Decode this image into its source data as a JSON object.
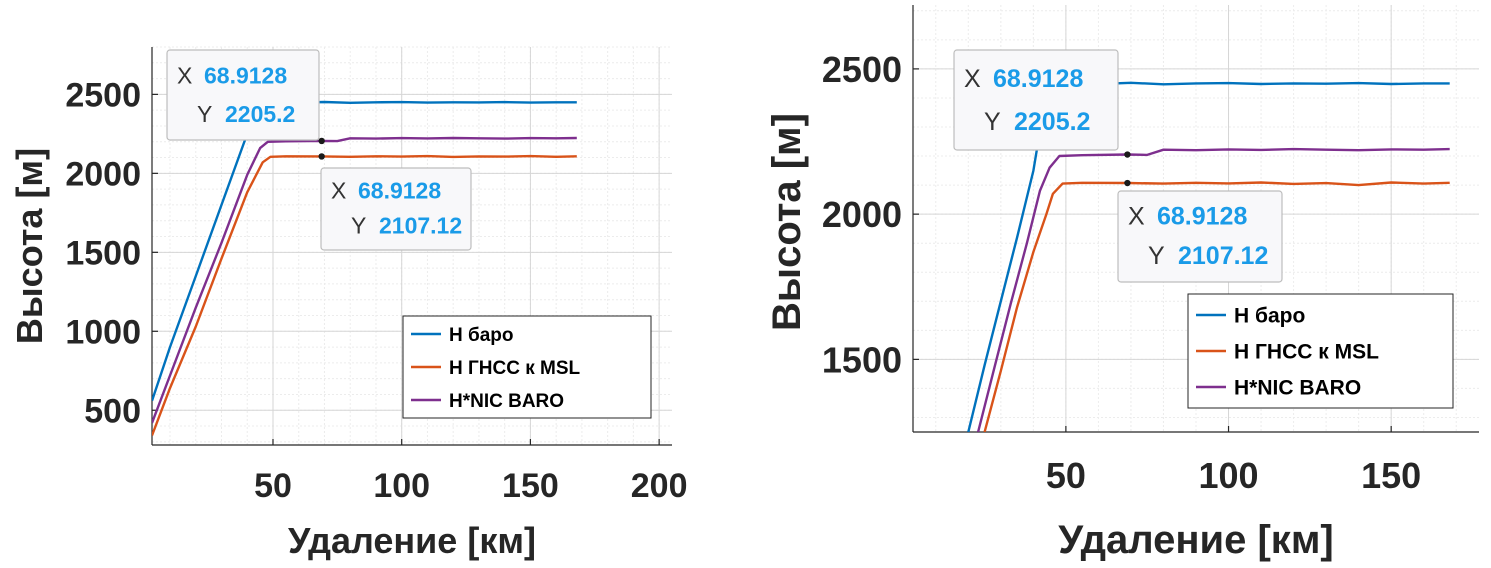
{
  "colors": {
    "baro": "#0072BD",
    "gnss": "#D95319",
    "nic": "#7E2F8E",
    "tip_label": "#333333",
    "tip_value": "#1A9BE8"
  },
  "chart_data": [
    {
      "type": "line",
      "xlabel": "Удаление [км]",
      "ylabel": "Высота [м]",
      "xlim": [
        3,
        205
      ],
      "ylim": [
        280,
        2800
      ],
      "xticks": [
        50,
        100,
        150,
        200
      ],
      "yticks": [
        500,
        1000,
        1500,
        2000,
        2500
      ],
      "grid": "major and minor",
      "legend_position": "bottom-right",
      "series": [
        {
          "name": "H баро",
          "color_key": "baro",
          "x": [
            3,
            10,
            20,
            30,
            40,
            44,
            47,
            50,
            60,
            70,
            80,
            90,
            100,
            110,
            120,
            130,
            140,
            150,
            160,
            168
          ],
          "y": [
            560,
            900,
            1350,
            1800,
            2250,
            2430,
            2448,
            2450,
            2448,
            2452,
            2447,
            2450,
            2451,
            2448,
            2450,
            2449,
            2451,
            2448,
            2450,
            2450
          ]
        },
        {
          "name": "H ГНСС к MSL",
          "color_key": "gnss",
          "x": [
            3,
            10,
            20,
            30,
            40,
            46,
            49,
            55,
            69,
            80,
            90,
            100,
            110,
            120,
            130,
            140,
            150,
            160,
            168
          ],
          "y": [
            340,
            640,
            1030,
            1460,
            1880,
            2070,
            2105,
            2108,
            2107.12,
            2105,
            2108,
            2106,
            2109,
            2104,
            2107,
            2106,
            2109,
            2105,
            2108
          ]
        },
        {
          "name": "H*NIC BARO",
          "color_key": "nic",
          "x": [
            3,
            10,
            20,
            30,
            40,
            45,
            48,
            55,
            69,
            75,
            80,
            90,
            100,
            110,
            120,
            130,
            140,
            150,
            160,
            168
          ],
          "y": [
            420,
            720,
            1150,
            1560,
            1990,
            2160,
            2200,
            2203,
            2205.2,
            2204,
            2222,
            2220,
            2223,
            2221,
            2224,
            2222,
            2220,
            2223,
            2222,
            2224
          ]
        }
      ],
      "datatips": [
        {
          "x_label": "X",
          "x_value": "68.9128",
          "y_label": "Y",
          "y_value": "2205.2",
          "x": 68.9128,
          "y": 2205.2
        },
        {
          "x_label": "X",
          "x_value": "68.9128",
          "y_label": "Y",
          "y_value": "2107.12",
          "x": 68.9128,
          "y": 2107.12
        }
      ]
    },
    {
      "type": "line",
      "xlabel": "Удаление [км]",
      "ylabel": "Высота [м]",
      "xlim": [
        3,
        177
      ],
      "ylim": [
        1250,
        2720
      ],
      "xticks": [
        50,
        100,
        150
      ],
      "yticks": [
        1500,
        2000,
        2500
      ],
      "grid": "major and minor",
      "legend_position": "bottom-right",
      "series": [
        {
          "name": "H баро",
          "color_key": "baro",
          "x": [
            20,
            25,
            30,
            35,
            40,
            44,
            47,
            50,
            60,
            70,
            80,
            90,
            100,
            110,
            120,
            130,
            140,
            150,
            160,
            168
          ],
          "y": [
            1250,
            1480,
            1700,
            1920,
            2150,
            2420,
            2445,
            2450,
            2448,
            2452,
            2447,
            2450,
            2451,
            2448,
            2450,
            2449,
            2451,
            2448,
            2450,
            2450
          ]
        },
        {
          "name": "H ГНСС к MSL",
          "color_key": "gnss",
          "x": [
            25,
            30,
            35,
            40,
            44,
            46,
            49,
            55,
            69,
            80,
            90,
            100,
            110,
            120,
            130,
            140,
            150,
            160,
            168
          ],
          "y": [
            1250,
            1460,
            1680,
            1870,
            2000,
            2070,
            2105,
            2108,
            2107.12,
            2105,
            2108,
            2106,
            2109,
            2104,
            2107,
            2100,
            2109,
            2105,
            2108
          ]
        },
        {
          "name": "H*NIC BARO",
          "color_key": "nic",
          "x": [
            23,
            28,
            33,
            38,
            42,
            45,
            48,
            55,
            69,
            75,
            80,
            90,
            100,
            110,
            120,
            130,
            140,
            150,
            160,
            168
          ],
          "y": [
            1250,
            1470,
            1690,
            1900,
            2080,
            2160,
            2200,
            2203,
            2205.2,
            2204,
            2222,
            2220,
            2223,
            2221,
            2224,
            2222,
            2220,
            2223,
            2222,
            2224
          ]
        }
      ],
      "datatips": [
        {
          "x_label": "X",
          "x_value": "68.9128",
          "y_label": "Y",
          "y_value": "2205.2",
          "x": 68.9128,
          "y": 2205.2
        },
        {
          "x_label": "X",
          "x_value": "68.9128",
          "y_label": "Y",
          "y_value": "2107.12",
          "x": 68.9128,
          "y": 2107.12
        }
      ]
    }
  ]
}
